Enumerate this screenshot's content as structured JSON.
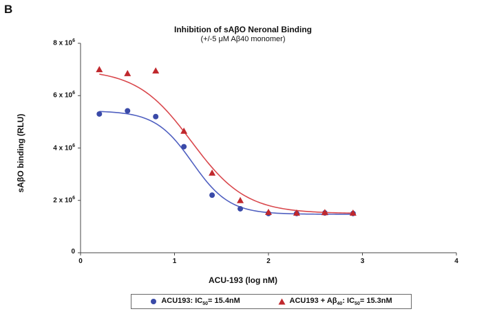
{
  "panel_label": "B",
  "chart_data": {
    "type": "scatter",
    "title": "Inhibition of sAβO Neronal Binding",
    "subtitle": "(+/-5 μM Aβ40 monomer)",
    "xlabel": "ACU-193 (log nM)",
    "ylabel": "sAβO binding (RLU)",
    "xlim": [
      0,
      4
    ],
    "ylim": [
      0,
      8000000
    ],
    "x_ticks": [
      0,
      1,
      2,
      3,
      4
    ],
    "y_ticks": [
      {
        "value": 0,
        "mantissa": "0",
        "exp": ""
      },
      {
        "value": 2000000,
        "mantissa": "2 x 10",
        "exp": "6"
      },
      {
        "value": 4000000,
        "mantissa": "4 x 10",
        "exp": "6"
      },
      {
        "value": 6000000,
        "mantissa": "6 x 10",
        "exp": "6"
      },
      {
        "value": 8000000,
        "mantissa": "8 x 10",
        "exp": "6"
      }
    ],
    "grid": false,
    "legend_position": "bottom",
    "series": [
      {
        "name": "ACU193: IC50= 15.4nM",
        "legend_parts": {
          "pre": "ACU193: IC",
          "sub": "50",
          "post": "= 15.4nM"
        },
        "marker": "circle",
        "color": "#3a4aa8",
        "curve_color": "#4f5fc0",
        "x": [
          0.2,
          0.5,
          0.8,
          1.1,
          1.4,
          1.7,
          2.0,
          2.3,
          2.6,
          2.9
        ],
        "y": [
          5300000,
          5420000,
          5200000,
          4050000,
          2200000,
          1680000,
          1500000,
          1500000,
          1520000,
          1500000
        ],
        "fit": {
          "top": 5420000,
          "bottom": 1470000,
          "logIC50": 1.19,
          "hill": 2.2
        }
      },
      {
        "name": "ACU193 + Aβ40: IC50= 15.3nM",
        "legend_parts": {
          "pre": "ACU193 + Aβ",
          "sub1": "40",
          "mid": ": IC",
          "sub2": "50",
          "post": "= 15.3nM"
        },
        "marker": "triangle",
        "color": "#c0282d",
        "curve_color": "#d9474c",
        "x": [
          0.2,
          0.5,
          0.8,
          1.1,
          1.4,
          1.7,
          2.0,
          2.3,
          2.6,
          2.9
        ],
        "y": [
          7000000,
          6850000,
          6950000,
          4650000,
          3050000,
          2000000,
          1550000,
          1520000,
          1540000,
          1520000
        ],
        "fit": {
          "top": 7000000,
          "bottom": 1500000,
          "logIC50": 1.18,
          "hill": 1.5
        }
      }
    ]
  }
}
